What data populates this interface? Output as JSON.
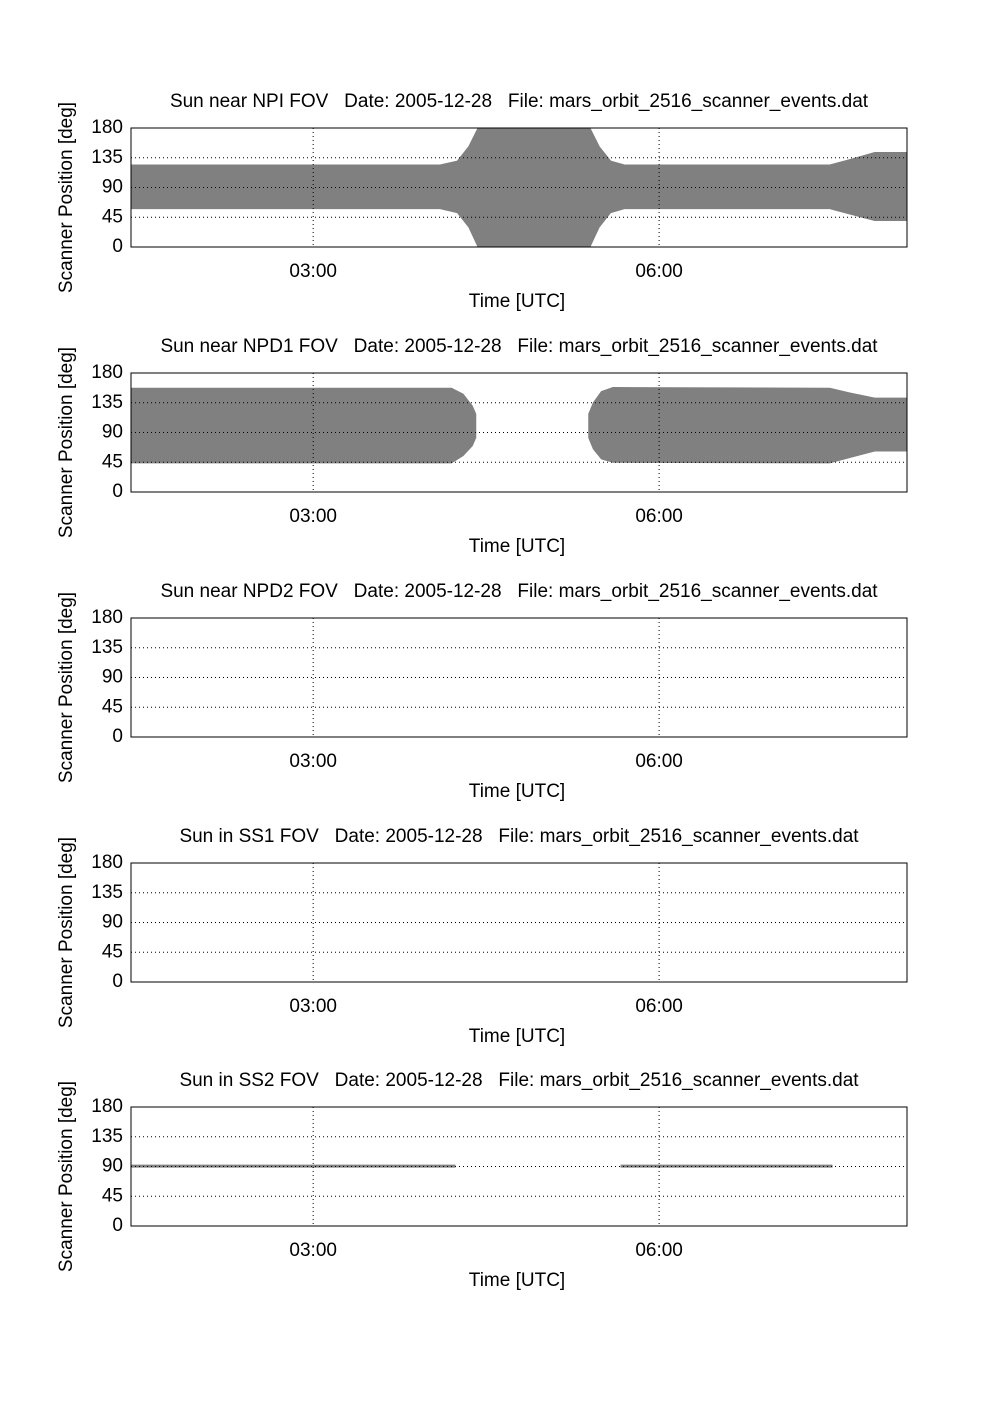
{
  "chart_data": [
    {
      "type": "range",
      "title": "Sun near NPI FOV   Date: 2005-12-28   File: mars_orbit_2516_scanner_events.dat",
      "xlabel": "Time [UTC]",
      "ylabel": "Scanner Position [deg]",
      "color": "#808080",
      "grid": true,
      "xlim": [
        1.42,
        8.15
      ],
      "xticks": [
        {
          "value": 3,
          "label": "03:00"
        },
        {
          "value": 6,
          "label": "06:00"
        }
      ],
      "ylim": [
        0,
        180
      ],
      "yticks": [
        0,
        45,
        90,
        135,
        180
      ],
      "x": [
        1.42,
        4.1,
        4.25,
        4.35,
        4.43,
        5.4,
        5.48,
        5.58,
        5.7,
        7.48,
        7.65,
        7.87,
        8.15
      ],
      "lower": [
        58,
        58,
        52,
        30,
        0,
        0,
        30,
        52,
        58,
        58,
        50,
        40,
        40
      ],
      "upper": [
        124,
        124,
        130,
        152,
        180,
        180,
        152,
        130,
        124,
        124,
        132,
        143,
        143
      ]
    },
    {
      "type": "range",
      "title": "Sun near NPD1 FOV   Date: 2005-12-28   File: mars_orbit_2516_scanner_events.dat",
      "xlabel": "Time [UTC]",
      "ylabel": "Scanner Position [deg]",
      "color": "#808080",
      "grid": true,
      "xlim": [
        1.42,
        8.15
      ],
      "xticks": [
        {
          "value": 3,
          "label": "03:00"
        },
        {
          "value": 6,
          "label": "06:00"
        }
      ],
      "ylim": [
        0,
        180
      ],
      "yticks": [
        0,
        45,
        90,
        135,
        180
      ],
      "x": [
        1.42,
        4.2,
        4.3,
        4.38,
        4.41,
        4.9,
        5.39,
        5.43,
        5.5,
        5.6,
        7.48,
        7.65,
        7.87,
        8.15
      ],
      "lower": [
        44,
        44,
        55,
        70,
        82,
        null,
        82,
        65,
        50,
        45,
        44,
        52,
        62,
        62
      ],
      "upper": [
        157,
        157,
        148,
        130,
        118,
        null,
        118,
        135,
        152,
        158,
        157,
        150,
        142,
        142
      ]
    },
    {
      "type": "range",
      "title": "Sun near NPD2 FOV   Date: 2005-12-28   File: mars_orbit_2516_scanner_events.dat",
      "xlabel": "Time [UTC]",
      "ylabel": "Scanner Position [deg]",
      "color": "#808080",
      "grid": true,
      "xlim": [
        1.42,
        8.15
      ],
      "xticks": [
        {
          "value": 3,
          "label": "03:00"
        },
        {
          "value": 6,
          "label": "06:00"
        }
      ],
      "ylim": [
        0,
        180
      ],
      "yticks": [
        0,
        45,
        90,
        135,
        180
      ],
      "x": [],
      "lower": [],
      "upper": []
    },
    {
      "type": "range",
      "title": "Sun in SS1 FOV   Date: 2005-12-28   File: mars_orbit_2516_scanner_events.dat",
      "xlabel": "Time [UTC]",
      "ylabel": "Scanner Position [deg]",
      "color": "#808080",
      "grid": true,
      "xlim": [
        1.42,
        8.15
      ],
      "xticks": [
        {
          "value": 3,
          "label": "03:00"
        },
        {
          "value": 6,
          "label": "06:00"
        }
      ],
      "ylim": [
        0,
        180
      ],
      "yticks": [
        0,
        45,
        90,
        135,
        180
      ],
      "x": [],
      "lower": [],
      "upper": []
    },
    {
      "type": "range",
      "title": "Sun in SS2 FOV   Date: 2005-12-28   File: mars_orbit_2516_scanner_events.dat",
      "xlabel": "Time [UTC]",
      "ylabel": "Scanner Position [deg]",
      "color": "#808080",
      "grid": true,
      "xlim": [
        1.42,
        8.15
      ],
      "xticks": [
        {
          "value": 3,
          "label": "03:00"
        },
        {
          "value": 6,
          "label": "06:00"
        }
      ],
      "ylim": [
        0,
        180
      ],
      "yticks": [
        0,
        45,
        90,
        135,
        180
      ],
      "x": [
        1.42,
        4.23,
        4.9,
        5.67,
        7.5
      ],
      "lower": [
        89,
        89,
        null,
        89,
        89
      ],
      "upper": [
        92,
        92,
        null,
        92,
        92
      ]
    }
  ]
}
